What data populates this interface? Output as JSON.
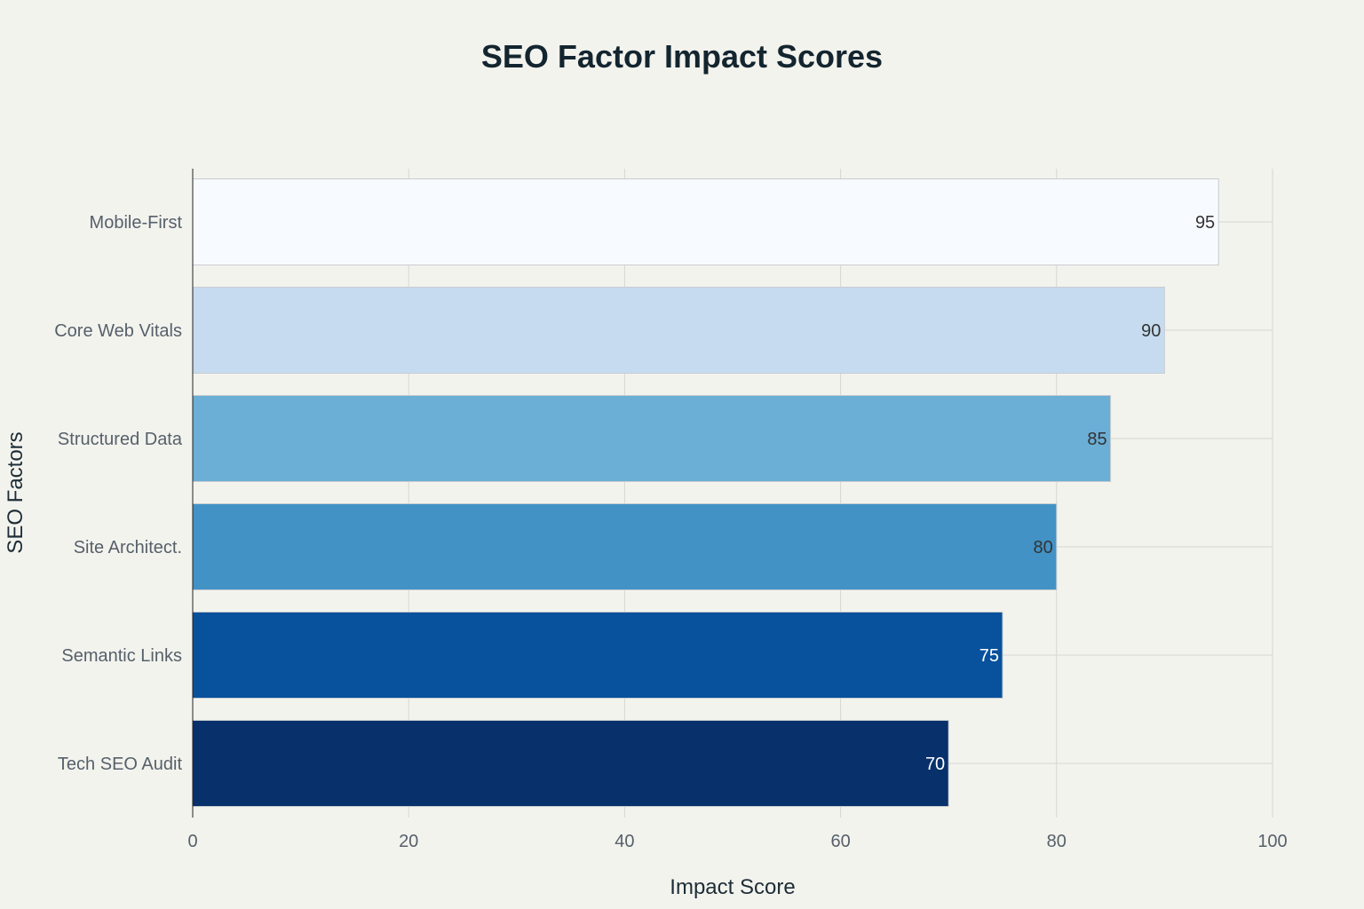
{
  "chart_data": {
    "type": "bar",
    "orientation": "horizontal",
    "title": "SEO Factor Impact Scores",
    "xlabel": "Impact Score",
    "ylabel": "SEO Factors",
    "xlim": [
      0,
      100
    ],
    "x_ticks": [
      0,
      20,
      40,
      60,
      80,
      100
    ],
    "grid": true,
    "legend": "none",
    "categories": [
      "Mobile-First",
      "Core Web Vitals",
      "Structured Data",
      "Site Architect.",
      "Semantic Links",
      "Tech SEO Audit"
    ],
    "values": [
      95,
      90,
      85,
      80,
      75,
      70
    ],
    "bar_colors": [
      "#f7fbff",
      "#c6dbef",
      "#6baed6",
      "#4292c6",
      "#08519c",
      "#08306b"
    ],
    "label_colors": [
      "#333333",
      "#333333",
      "#333333",
      "#333333",
      "#ffffff",
      "#ffffff"
    ]
  }
}
